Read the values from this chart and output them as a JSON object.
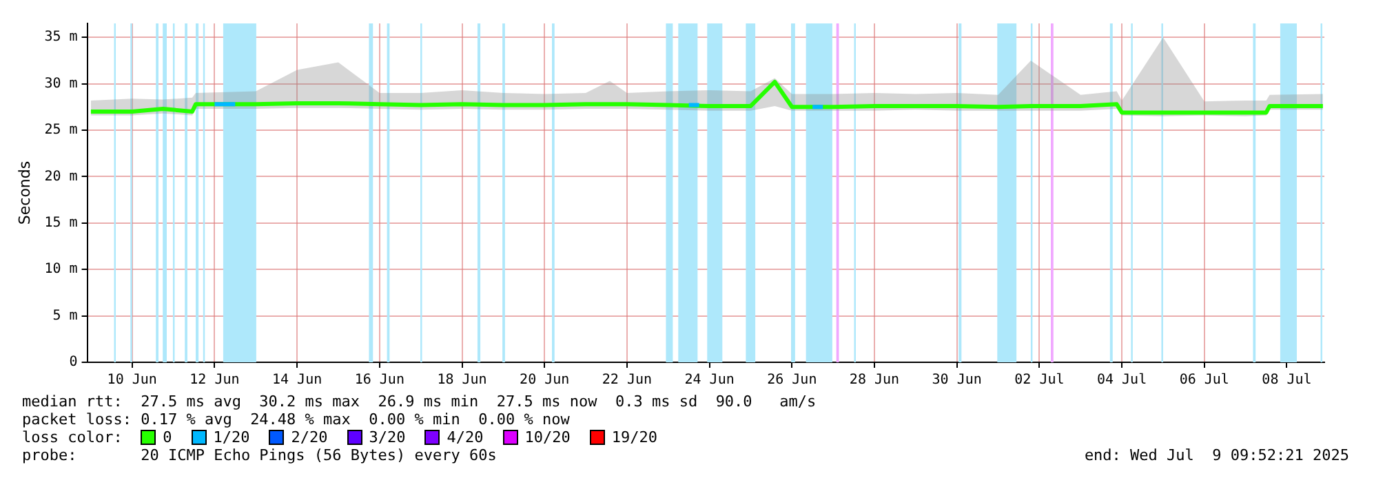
{
  "chart_data": {
    "type": "line",
    "ylabel": "Seconds",
    "legend_title": "loss color:",
    "legend": "bottom",
    "grid": true,
    "marker": "none",
    "line_style": "solid",
    "xlim": [
      "2025-06-09T09:52",
      "2025-07-09T09:52"
    ],
    "xticks": [
      {
        "value": "2025-06-10T12:00",
        "label": "10 Jun"
      },
      {
        "value": "2025-06-12T12:00",
        "label": "12 Jun"
      },
      {
        "value": "2025-06-14T12:00",
        "label": "14 Jun"
      },
      {
        "value": "2025-06-16T12:00",
        "label": "16 Jun"
      },
      {
        "value": "2025-06-18T12:00",
        "label": "18 Jun"
      },
      {
        "value": "2025-06-20T12:00",
        "label": "20 Jun"
      },
      {
        "value": "2025-06-22T12:00",
        "label": "22 Jun"
      },
      {
        "value": "2025-06-24T12:00",
        "label": "24 Jun"
      },
      {
        "value": "2025-06-26T12:00",
        "label": "26 Jun"
      },
      {
        "value": "2025-06-28T12:00",
        "label": "28 Jun"
      },
      {
        "value": "2025-06-30T12:00",
        "label": "30 Jun"
      },
      {
        "value": "2025-07-02T12:00",
        "label": "02 Jul"
      },
      {
        "value": "2025-07-04T12:00",
        "label": "04 Jul"
      },
      {
        "value": "2025-07-06T12:00",
        "label": "06 Jul"
      },
      {
        "value": "2025-07-08T12:00",
        "label": "08 Jul"
      }
    ],
    "ylim": [
      0,
      36.5
    ],
    "yticks": [
      0,
      {
        "value": 5,
        "label": "5 m"
      },
      {
        "value": 10,
        "label": "10 m"
      },
      {
        "value": 15,
        "label": "15 m"
      },
      {
        "value": 20,
        "label": "20 m"
      },
      {
        "value": 25,
        "label": "25 m"
      },
      {
        "value": 30,
        "label": "30 m"
      },
      {
        "value": 35,
        "label": "35 m"
      }
    ],
    "series": [
      {
        "name": "0",
        "type": "line",
        "color": "#26ff00",
        "x": [
          "2025-06-09T12:00",
          "2025-06-10T12:00",
          "2025-06-11T06:00",
          "2025-06-11T23:00",
          "2025-06-12T01:00",
          "2025-06-13T12:00",
          "2025-06-14T12:00",
          "2025-06-15T12:00",
          "2025-06-16T12:00",
          "2025-06-17T12:00",
          "2025-06-18T12:00",
          "2025-06-19T12:00",
          "2025-06-20T12:00",
          "2025-06-21T12:00",
          "2025-06-22T02:00",
          "2025-06-22T12:00",
          "2025-06-23T12:00",
          "2025-06-24T12:00",
          "2025-06-25T12:00",
          "2025-06-26T02:00",
          "2025-06-26T12:00",
          "2025-06-27T12:00",
          "2025-06-28T12:00",
          "2025-06-29T12:00",
          "2025-06-30T12:00",
          "2025-07-01T12:00",
          "2025-07-02T07:00",
          "2025-07-03T12:00",
          "2025-07-04T09:00",
          "2025-07-04T12:00",
          "2025-07-05T12:00",
          "2025-07-06T12:00",
          "2025-07-07T12:00",
          "2025-07-08T00:00",
          "2025-07-08T02:00",
          "2025-07-09T09:00"
        ],
        "values": [
          27.0,
          27.0,
          27.3,
          27.0,
          27.8,
          27.8,
          27.9,
          27.9,
          27.8,
          27.7,
          27.8,
          27.7,
          27.7,
          27.8,
          27.8,
          27.8,
          27.7,
          27.6,
          27.6,
          30.2,
          27.5,
          27.5,
          27.6,
          27.6,
          27.6,
          27.5,
          27.6,
          27.6,
          27.8,
          26.9,
          26.9,
          26.9,
          26.9,
          26.9,
          27.6,
          27.6
        ],
        "lower": [
          26.6,
          26.6,
          26.8,
          26.6,
          27.3,
          27.3,
          27.4,
          27.4,
          27.3,
          27.2,
          27.3,
          27.2,
          27.2,
          27.3,
          27.3,
          27.3,
          27.2,
          27.1,
          27.1,
          27.6,
          27.1,
          27.1,
          27.1,
          27.2,
          27.1,
          27.1,
          27.1,
          27.1,
          27.3,
          26.6,
          26.5,
          26.6,
          26.5,
          26.6,
          27.2,
          27.2
        ],
        "upper": [
          28.2,
          28.4,
          28.3,
          28.5,
          29.0,
          29.2,
          31.5,
          32.3,
          29.0,
          29.0,
          29.3,
          29.0,
          28.9,
          29.0,
          30.3,
          29.0,
          29.2,
          29.3,
          29.2,
          30.6,
          28.9,
          28.9,
          29.0,
          28.9,
          29.0,
          28.8,
          32.5,
          28.8,
          29.2,
          28.2,
          35.0,
          28.1,
          28.2,
          28.2,
          28.8,
          28.9
        ]
      },
      {
        "name": "1/20",
        "type": "line",
        "color": "#00b8ff",
        "x": [
          "2025-06-12T12:00",
          "2025-06-13T00:00",
          "2025-06-13T01:00",
          "2025-06-24T00:00",
          "2025-06-24T06:00",
          "2025-06-24T07:00",
          "2025-06-27T00:00",
          "2025-06-27T06:00"
        ],
        "values": [
          27.8,
          27.8,
          null,
          27.7,
          27.7,
          null,
          27.5,
          27.5
        ]
      },
      {
        "name": "2/20",
        "type": "line",
        "color": "#0059ff"
      },
      {
        "name": "3/20",
        "type": "line",
        "color": "#5e00ff"
      },
      {
        "name": "4/20",
        "type": "line",
        "color": "#7e00ff"
      },
      {
        "name": "10/20",
        "type": "line",
        "color": "#dd00ff"
      },
      {
        "name": "19/20",
        "type": "line",
        "color": "#ff0000"
      }
    ],
    "bands": [
      {
        "axis": "x",
        "from": "2025-06-10T01:30",
        "to": "2025-06-10T02:30",
        "color": "#aee8fb"
      },
      {
        "axis": "x",
        "from": "2025-06-10T11:00",
        "to": "2025-06-10T12:00",
        "color": "#aee8fb"
      },
      {
        "axis": "x",
        "from": "2025-06-11T01:50",
        "to": "2025-06-11T03:20",
        "color": "#aee8fb"
      },
      {
        "axis": "x",
        "from": "2025-06-11T05:50",
        "to": "2025-06-11T08:10",
        "color": "#aee8fb"
      },
      {
        "axis": "x",
        "from": "2025-06-11T11:45",
        "to": "2025-06-11T12:45",
        "color": "#aee8fb"
      },
      {
        "axis": "x",
        "from": "2025-06-11T18:40",
        "to": "2025-06-11T20:10",
        "color": "#aee8fb"
      },
      {
        "axis": "x",
        "from": "2025-06-12T01:00",
        "to": "2025-06-12T02:40",
        "color": "#aee8fb"
      },
      {
        "axis": "x",
        "from": "2025-06-12T05:20",
        "to": "2025-06-12T06:20",
        "color": "#aee8fb"
      },
      {
        "axis": "x",
        "from": "2025-06-12T17:00",
        "to": "2025-06-13T12:15",
        "color": "#aee8fb"
      },
      {
        "axis": "x",
        "from": "2025-06-16T05:50",
        "to": "2025-06-16T08:10",
        "color": "#aee8fb"
      },
      {
        "axis": "x",
        "from": "2025-06-16T16:20",
        "to": "2025-06-16T17:50",
        "color": "#aee8fb"
      },
      {
        "axis": "x",
        "from": "2025-06-17T11:45",
        "to": "2025-06-17T12:45",
        "color": "#aee8fb"
      },
      {
        "axis": "x",
        "from": "2025-06-18T21:00",
        "to": "2025-06-18T22:40",
        "color": "#aee8fb"
      },
      {
        "axis": "x",
        "from": "2025-06-19T11:30",
        "to": "2025-06-19T13:00",
        "color": "#aee8fb"
      },
      {
        "axis": "x",
        "from": "2025-06-20T16:20",
        "to": "2025-06-20T17:50",
        "color": "#aee8fb"
      },
      {
        "axis": "x",
        "from": "2025-06-23T10:40",
        "to": "2025-06-23T14:40",
        "color": "#aee8fb"
      },
      {
        "axis": "x",
        "from": "2025-06-23T17:50",
        "to": "2025-06-24T05:05",
        "color": "#aee8fb"
      },
      {
        "axis": "x",
        "from": "2025-06-24T10:40",
        "to": "2025-06-24T19:30",
        "color": "#aee8fb"
      },
      {
        "axis": "x",
        "from": "2025-06-25T09:10",
        "to": "2025-06-25T14:40",
        "color": "#aee8fb"
      },
      {
        "axis": "x",
        "from": "2025-06-26T11:30",
        "to": "2025-06-26T13:50",
        "color": "#aee8fb"
      },
      {
        "axis": "x",
        "from": "2025-06-26T20:10",
        "to": "2025-06-27T11:30",
        "color": "#aee8fb"
      },
      {
        "axis": "x",
        "from": "2025-06-27T13:50",
        "to": "2025-06-27T15:20",
        "color": "#f0a8ff"
      },
      {
        "axis": "x",
        "from": "2025-06-28T00:10",
        "to": "2025-06-28T01:10",
        "color": "#aee8fb"
      },
      {
        "axis": "x",
        "from": "2025-06-30T13:00",
        "to": "2025-06-30T14:40",
        "color": "#aee8fb"
      },
      {
        "axis": "x",
        "from": "2025-07-01T11:30",
        "to": "2025-07-01T22:40",
        "color": "#aee8fb"
      },
      {
        "axis": "x",
        "from": "2025-07-02T07:00",
        "to": "2025-07-02T08:00",
        "color": "#aee8fb"
      },
      {
        "axis": "x",
        "from": "2025-07-02T18:40",
        "to": "2025-07-02T20:10",
        "color": "#f0a8ff"
      },
      {
        "axis": "x",
        "from": "2025-07-04T05:05",
        "to": "2025-07-04T06:40",
        "color": "#aee8fb"
      },
      {
        "axis": "x",
        "from": "2025-07-04T17:20",
        "to": "2025-07-04T18:20",
        "color": "#aee8fb"
      },
      {
        "axis": "x",
        "from": "2025-07-05T11:00",
        "to": "2025-07-05T12:00",
        "color": "#aee8fb"
      },
      {
        "axis": "x",
        "from": "2025-07-07T16:20",
        "to": "2025-07-07T17:50",
        "color": "#aee8fb"
      },
      {
        "axis": "x",
        "from": "2025-07-08T08:10",
        "to": "2025-07-08T17:50",
        "color": "#aee8fb"
      },
      {
        "axis": "x",
        "from": "2025-07-09T07:40",
        "to": "2025-07-09T08:40",
        "color": "#aee8fb"
      }
    ],
    "annotations": [
      "median rtt:  27.5 ms avg  30.2 ms max  26.9 ms min  27.5 ms now  0.3 ms sd  90.0   am/s",
      "packet loss: 0.17 % avg  24.48 % max  0.00 % min  0.00 % now",
      "probe:       20 ICMP Echo Pings (56 Bytes) every 60s",
      "end: Wed Jul  9 09:52:21 2025"
    ]
  }
}
